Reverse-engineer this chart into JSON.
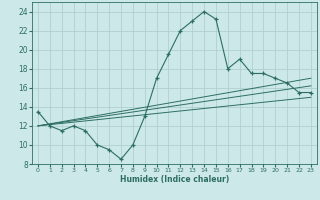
{
  "xlabel": "Humidex (Indice chaleur)",
  "ylabel": "",
  "bg_color": "#cce8e8",
  "grid_color": "#b0d0d0",
  "line_color": "#2d6e63",
  "xlim": [
    -0.5,
    23.5
  ],
  "ylim": [
    8,
    25
  ],
  "yticks": [
    8,
    10,
    12,
    14,
    16,
    18,
    20,
    22,
    24
  ],
  "xticks": [
    0,
    1,
    2,
    3,
    4,
    5,
    6,
    7,
    8,
    9,
    10,
    11,
    12,
    13,
    14,
    15,
    16,
    17,
    18,
    19,
    20,
    21,
    22,
    23
  ],
  "main_x": [
    0,
    1,
    2,
    3,
    4,
    5,
    6,
    7,
    8,
    9,
    10,
    11,
    12,
    13,
    14,
    15,
    16,
    17,
    18,
    19,
    20,
    21,
    22,
    23
  ],
  "main_y": [
    13.5,
    12.0,
    11.5,
    12.0,
    11.5,
    10.0,
    9.5,
    8.5,
    10.0,
    13.0,
    17.0,
    19.5,
    22.0,
    23.0,
    24.0,
    23.2,
    18.0,
    19.0,
    17.5,
    17.5,
    17.0,
    16.5,
    15.5,
    15.5
  ],
  "upper_line_x": [
    0,
    23
  ],
  "upper_line_y": [
    12.0,
    17.0
  ],
  "lower_line_x": [
    0,
    23
  ],
  "lower_line_y": [
    12.0,
    15.0
  ],
  "mid_line_x": [
    0,
    23
  ],
  "mid_line_y": [
    12.0,
    16.2
  ]
}
